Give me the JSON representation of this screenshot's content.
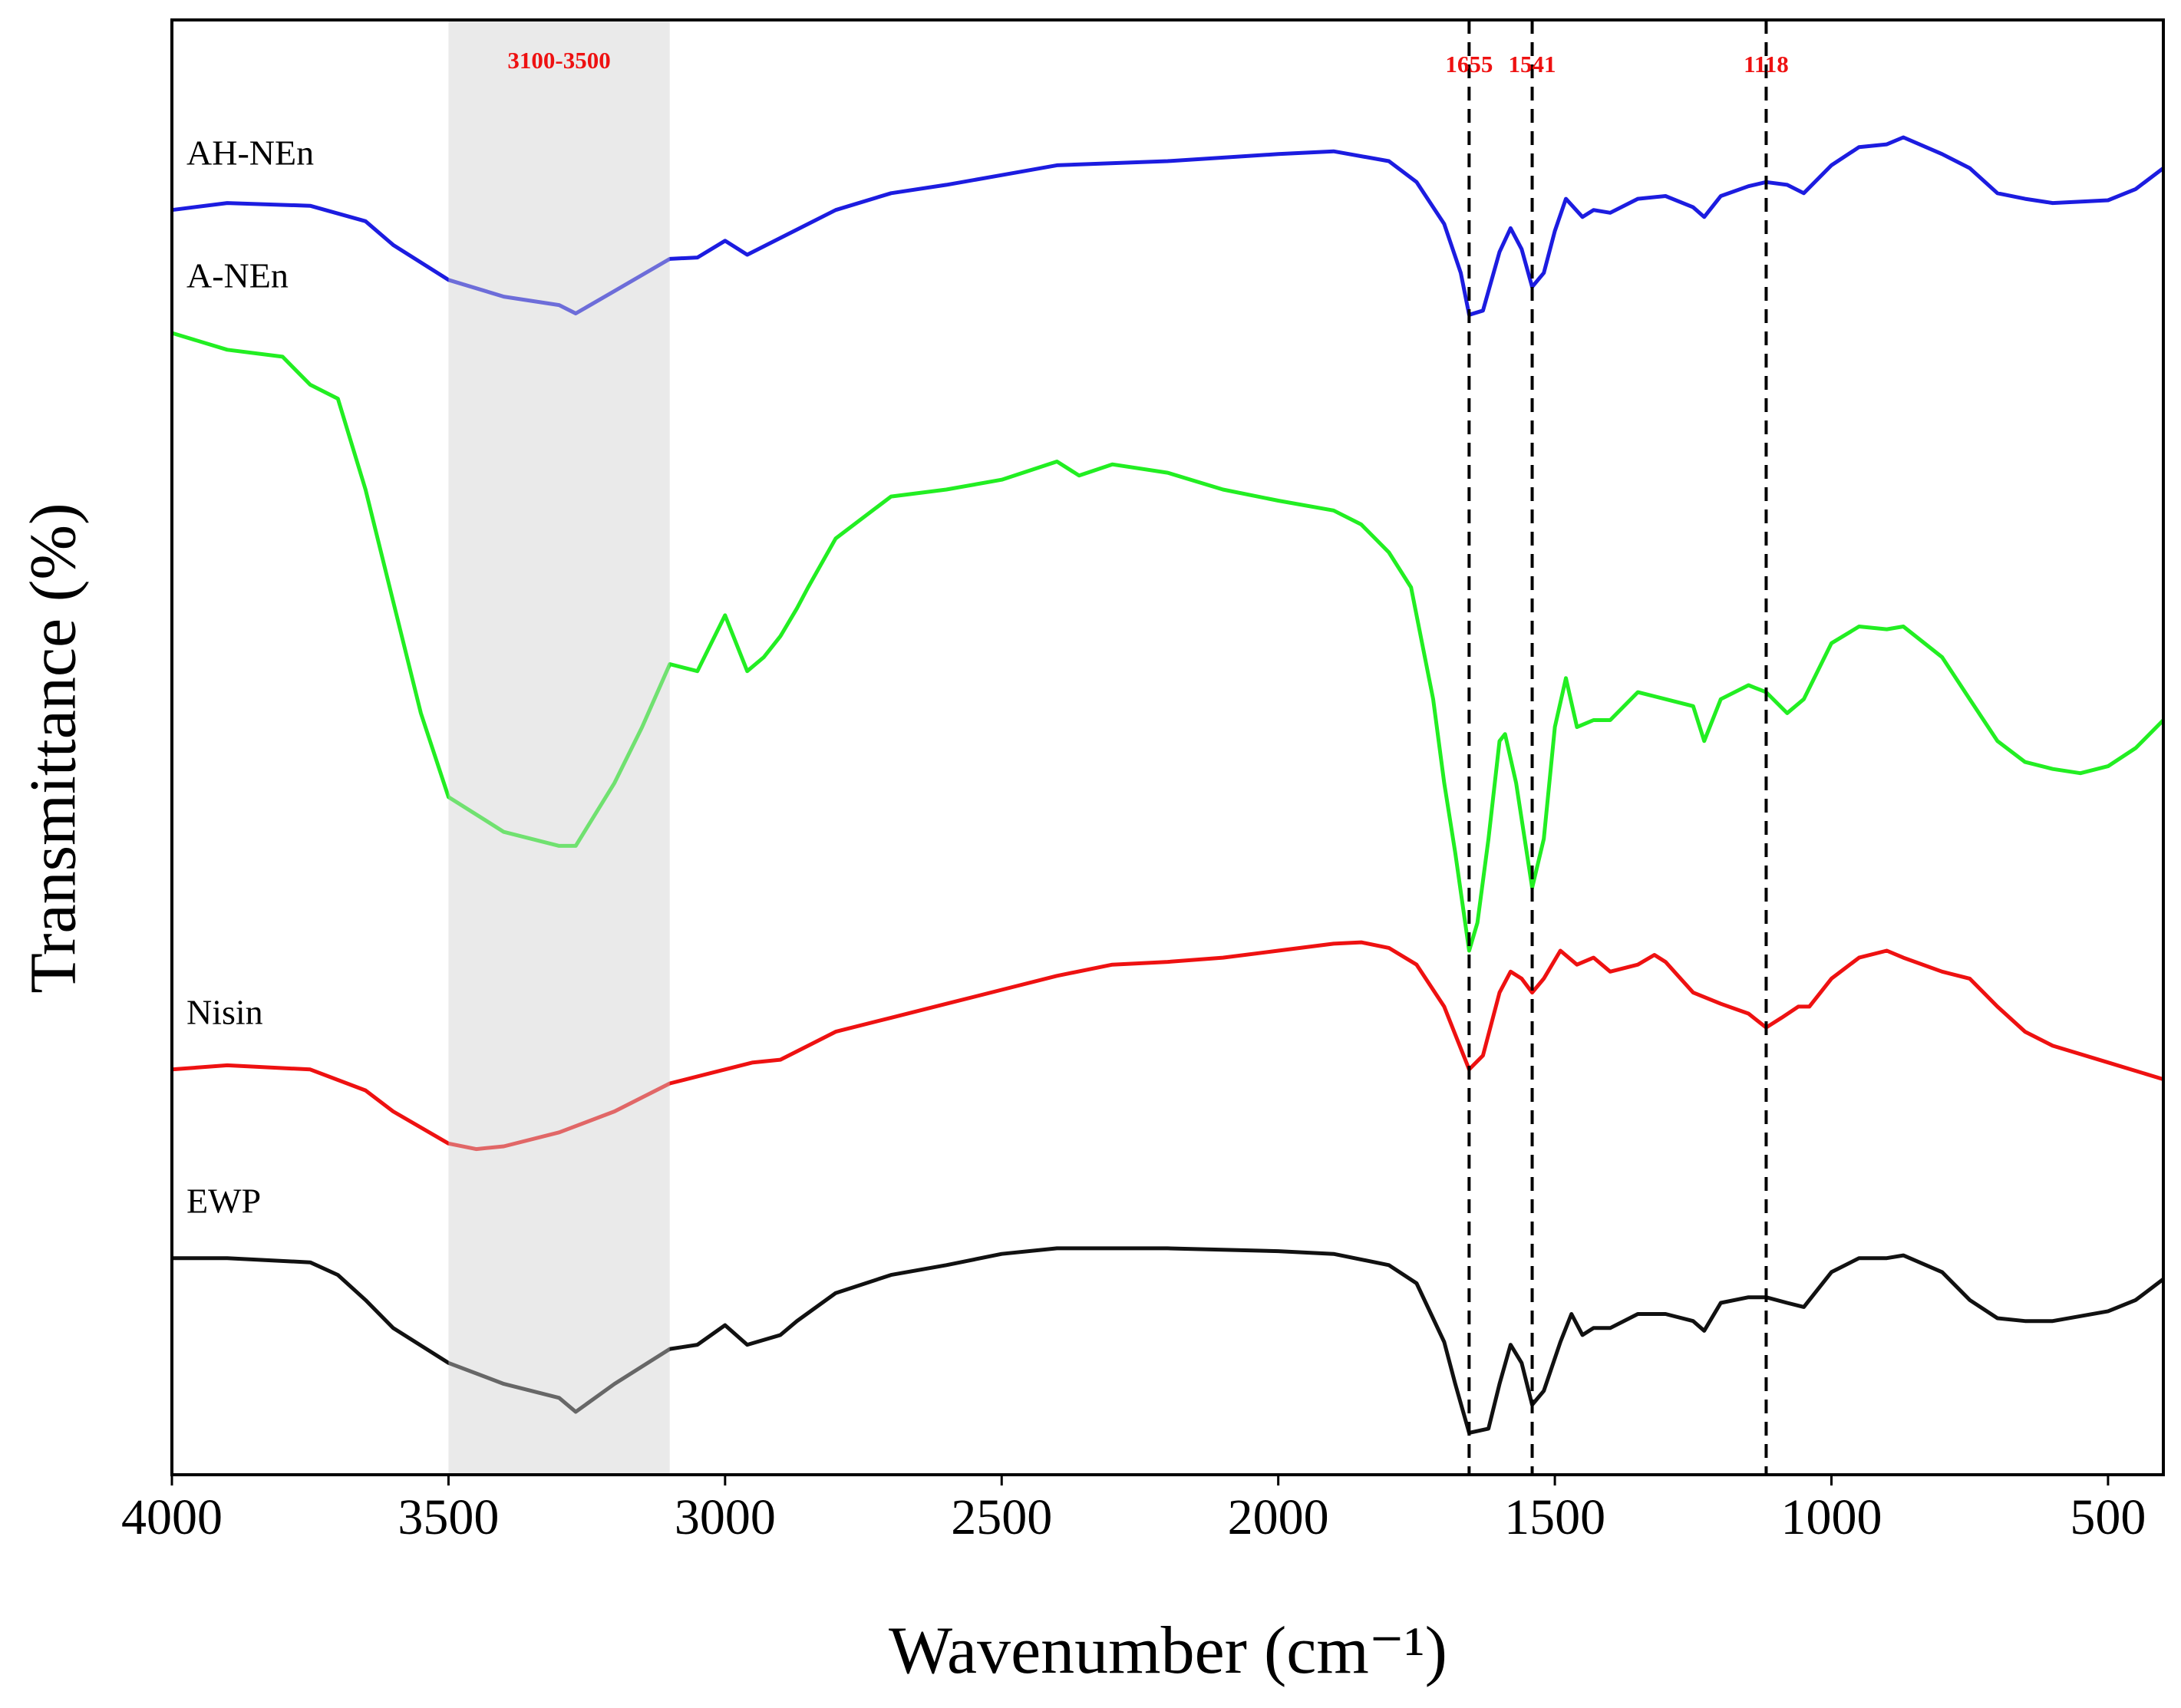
{
  "chart_data": {
    "type": "line",
    "x_label": "Wavenumber (cm⁻¹)",
    "y_label": "Transmittance (%)",
    "xlim": [
      4000,
      400
    ],
    "ylim": [
      0,
      104.1
    ],
    "xticks": [
      4000,
      3500,
      3000,
      2500,
      2000,
      1500,
      1000,
      500
    ],
    "grid": false,
    "shaded_region": {
      "range": [
        3500,
        3100
      ],
      "label": "3100-3500",
      "color": "#d0d0d0"
    },
    "vlines": [
      {
        "x": 1655,
        "label": "1655"
      },
      {
        "x": 1541,
        "label": "1541"
      },
      {
        "x": 1118,
        "label": "1118"
      }
    ],
    "annotation_color": "#ee1111",
    "series": [
      {
        "name": "AH-NEn",
        "color": "#1c1ce0",
        "x": [
          4000,
          3900,
          3750,
          3650,
          3600,
          3500,
          3400,
          3300,
          3270,
          3200,
          3100,
          3050,
          3000,
          2960,
          2900,
          2850,
          2800,
          2700,
          2600,
          2500,
          2400,
          2200,
          2000,
          1900,
          1800,
          1750,
          1700,
          1670,
          1655,
          1630,
          1600,
          1580,
          1560,
          1541,
          1520,
          1500,
          1480,
          1450,
          1430,
          1400,
          1350,
          1300,
          1250,
          1230,
          1200,
          1150,
          1118,
          1080,
          1050,
          1000,
          950,
          900,
          870,
          800,
          750,
          700,
          650,
          600,
          500,
          450,
          400
        ],
        "values": [
          90.5,
          91.0,
          90.8,
          89.7,
          88.0,
          85.5,
          84.3,
          83.7,
          83.1,
          84.7,
          87.0,
          87.1,
          88.3,
          87.3,
          88.5,
          89.5,
          90.5,
          91.7,
          92.3,
          93.0,
          93.7,
          94.0,
          94.5,
          94.7,
          94.0,
          92.5,
          89.5,
          86.0,
          83.0,
          83.3,
          87.5,
          89.2,
          87.7,
          85.0,
          86.0,
          89.0,
          91.3,
          90.0,
          90.5,
          90.3,
          91.3,
          91.5,
          90.7,
          90.0,
          91.5,
          92.2,
          92.5,
          92.3,
          91.7,
          93.7,
          95.0,
          95.2,
          95.7,
          94.5,
          93.5,
          91.7,
          91.3,
          91.0,
          91.2,
          92.0,
          93.5
        ]
      },
      {
        "name": "A-NEn",
        "color": "#22ee22",
        "x": [
          4000,
          3900,
          3800,
          3750,
          3700,
          3650,
          3600,
          3550,
          3500,
          3400,
          3300,
          3270,
          3200,
          3150,
          3100,
          3050,
          3000,
          2960,
          2930,
          2900,
          2870,
          2850,
          2800,
          2700,
          2600,
          2500,
          2400,
          2360,
          2300,
          2200,
          2100,
          2000,
          1900,
          1850,
          1800,
          1760,
          1720,
          1700,
          1680,
          1655,
          1640,
          1620,
          1600,
          1590,
          1570,
          1541,
          1520,
          1500,
          1480,
          1460,
          1430,
          1400,
          1350,
          1300,
          1250,
          1230,
          1200,
          1150,
          1118,
          1080,
          1050,
          1000,
          950,
          900,
          870,
          800,
          750,
          700,
          650,
          600,
          550,
          500,
          450,
          400
        ],
        "values": [
          81.7,
          80.5,
          80.0,
          78.0,
          77.0,
          70.5,
          62.5,
          54.5,
          48.5,
          46.0,
          45.0,
          45.0,
          49.5,
          53.5,
          58.0,
          57.5,
          61.5,
          57.5,
          58.5,
          60.0,
          62.0,
          63.5,
          67.0,
          70.0,
          70.5,
          71.2,
          72.5,
          71.5,
          72.3,
          71.7,
          70.5,
          69.7,
          69.0,
          68.0,
          66.0,
          63.5,
          55.5,
          49.5,
          44.5,
          37.5,
          39.5,
          45.5,
          52.5,
          53.0,
          49.5,
          42.0,
          45.5,
          53.5,
          57.0,
          53.5,
          54.0,
          54.0,
          56.0,
          55.5,
          55.0,
          52.5,
          55.5,
          56.5,
          56.0,
          54.5,
          55.5,
          59.5,
          60.7,
          60.5,
          60.7,
          58.5,
          55.5,
          52.5,
          51.0,
          50.5,
          50.2,
          50.7,
          52.0,
          54.0
        ]
      },
      {
        "name": "Nisin",
        "color": "#ee1111",
        "x": [
          4000,
          3900,
          3750,
          3650,
          3600,
          3500,
          3450,
          3400,
          3300,
          3200,
          3100,
          3000,
          2950,
          2900,
          2850,
          2800,
          2700,
          2600,
          2500,
          2400,
          2300,
          2200,
          2100,
          2000,
          1900,
          1850,
          1800,
          1750,
          1700,
          1680,
          1655,
          1630,
          1600,
          1580,
          1560,
          1541,
          1520,
          1490,
          1460,
          1430,
          1400,
          1350,
          1320,
          1300,
          1250,
          1200,
          1150,
          1118,
          1090,
          1060,
          1040,
          1000,
          950,
          900,
          870,
          800,
          750,
          700,
          650,
          600,
          500,
          400
        ],
        "values": [
          29.0,
          29.3,
          29.0,
          27.5,
          26.0,
          23.7,
          23.3,
          23.5,
          24.5,
          26.0,
          28.0,
          29.0,
          29.5,
          29.7,
          30.7,
          31.7,
          32.7,
          33.7,
          34.7,
          35.7,
          36.5,
          36.7,
          37.0,
          37.5,
          38.0,
          38.1,
          37.7,
          36.5,
          33.5,
          31.5,
          29.0,
          30.0,
          34.5,
          36.0,
          35.5,
          34.5,
          35.5,
          37.5,
          36.5,
          37.0,
          36.0,
          36.5,
          37.2,
          36.7,
          34.5,
          33.7,
          33.0,
          32.0,
          32.7,
          33.5,
          33.5,
          35.5,
          37.0,
          37.5,
          37.0,
          36.0,
          35.5,
          33.5,
          31.7,
          30.7,
          29.5,
          28.3
        ]
      },
      {
        "name": "EWP",
        "color": "#111111",
        "x": [
          4000,
          3900,
          3750,
          3700,
          3650,
          3600,
          3500,
          3400,
          3300,
          3270,
          3200,
          3100,
          3050,
          3000,
          2960,
          2900,
          2870,
          2800,
          2700,
          2600,
          2500,
          2400,
          2200,
          2000,
          1900,
          1800,
          1750,
          1700,
          1680,
          1655,
          1620,
          1600,
          1580,
          1560,
          1541,
          1520,
          1490,
          1470,
          1450,
          1430,
          1400,
          1350,
          1300,
          1250,
          1230,
          1200,
          1150,
          1118,
          1080,
          1050,
          1000,
          950,
          900,
          870,
          800,
          750,
          700,
          650,
          600,
          500,
          450,
          400
        ],
        "values": [
          15.5,
          15.5,
          15.2,
          14.3,
          12.5,
          10.5,
          8.0,
          6.5,
          5.5,
          4.5,
          6.5,
          9.0,
          9.3,
          10.7,
          9.3,
          10.0,
          11.0,
          13.0,
          14.3,
          15.0,
          15.8,
          16.2,
          16.2,
          16.0,
          15.8,
          15.0,
          13.7,
          9.5,
          6.5,
          3.0,
          3.3,
          6.5,
          9.3,
          8.0,
          5.0,
          6.0,
          9.5,
          11.5,
          10.0,
          10.5,
          10.5,
          11.5,
          11.5,
          11.0,
          10.3,
          12.3,
          12.7,
          12.7,
          12.3,
          12.0,
          14.5,
          15.5,
          15.5,
          15.7,
          14.5,
          12.5,
          11.2,
          11.0,
          11.0,
          11.7,
          12.5,
          14.0
        ]
      }
    ]
  }
}
